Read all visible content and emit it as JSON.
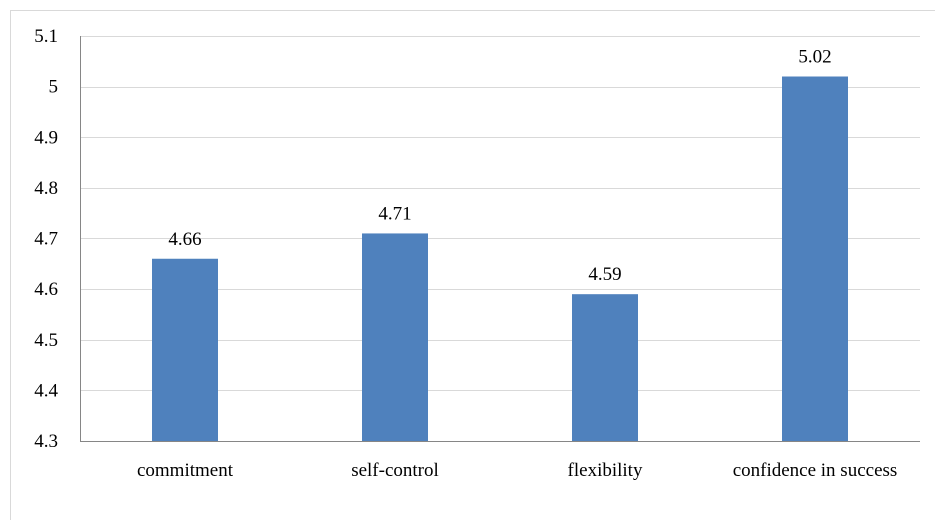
{
  "chart_data": {
    "type": "bar",
    "title": "",
    "xlabel": "",
    "ylabel": "",
    "categories": [
      "commitment",
      "self-control",
      "flexibility",
      "confidence in success"
    ],
    "values": [
      4.66,
      4.71,
      4.59,
      5.02
    ],
    "data_labels": [
      "4.66",
      "4.71",
      "4.59",
      "5.02"
    ],
    "ylim": [
      4.3,
      5.1
    ],
    "yticks": [
      4.3,
      4.4,
      4.5,
      4.6,
      4.7,
      4.8,
      4.9,
      5,
      5.1
    ],
    "ytick_labels": [
      "4.3",
      "4.4",
      "4.5",
      "4.6",
      "4.7",
      "4.8",
      "4.9",
      "5",
      "5.1"
    ],
    "grid": true,
    "legend": "none",
    "bar_color": "#4f81bd",
    "grid_color": "#d9d9d9",
    "axis_color": "#868686"
  }
}
